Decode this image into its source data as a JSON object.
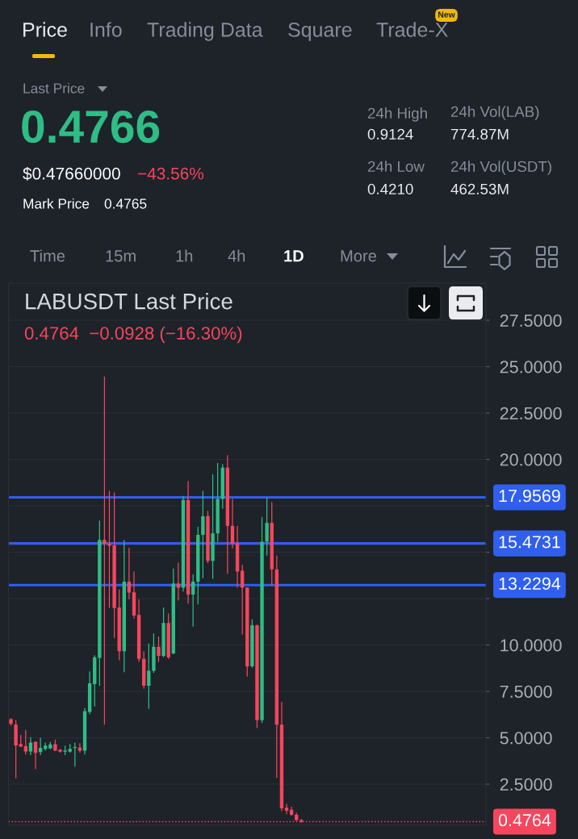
{
  "chart_data": {
    "type": "candlestick",
    "title": "LABUSDT Last Price",
    "subtitle": "0.4764  −0.0928 (−16.30%)",
    "annotations": [
      "Price",
      "Info",
      "Trading Data",
      "Square",
      "Trade-X",
      "New",
      "Last Price",
      "0.4766",
      "$0.47660000",
      "−43.56%",
      "Mark Price",
      "0.4765",
      "24h High",
      "0.9124",
      "24h Vol(LAB)",
      "774.87M",
      "24h Low",
      "0.4210",
      "24h Vol(USDT)",
      "462.53M",
      "Time",
      "15m",
      "1h",
      "4h",
      "1D",
      "More"
    ],
    "categories": [
      null,
      null,
      null,
      null,
      null,
      null,
      null,
      null,
      null,
      null,
      null,
      null,
      null,
      null,
      null,
      null,
      null,
      null,
      null,
      null,
      null,
      null,
      null,
      null,
      null,
      null,
      null,
      null,
      null,
      null,
      null,
      null,
      null,
      null,
      null,
      null,
      null,
      null,
      null,
      null,
      null,
      null,
      null,
      null,
      null,
      null,
      null,
      null,
      null,
      null,
      null,
      null,
      null,
      null,
      null,
      null,
      null,
      null,
      null,
      null,
      null,
      null,
      null,
      null,
      null,
      null,
      null,
      null,
      null,
      null,
      null,
      null,
      null,
      null,
      null,
      null,
      null,
      null,
      null,
      null,
      null,
      null,
      null,
      null,
      null,
      null,
      null,
      null,
      null,
      null,
      null,
      null,
      null,
      null,
      null,
      null,
      null
    ],
    "ohlc": [
      [
        6.0,
        6.05,
        5.65,
        5.75
      ],
      [
        5.71,
        5.95,
        2.81,
        4.59
      ],
      [
        4.66,
        5.15,
        4.5,
        4.52
      ],
      [
        4.55,
        5.42,
        4.1,
        4.26
      ],
      [
        4.26,
        5.03,
        4.07,
        4.74
      ],
      [
        4.78,
        4.8,
        3.3,
        4.18
      ],
      [
        4.23,
        5.0,
        4.07,
        4.46
      ],
      [
        4.4,
        4.74,
        4.3,
        4.58
      ],
      [
        4.42,
        4.78,
        4.38,
        4.64
      ],
      [
        4.65,
        4.9,
        4.28,
        4.3
      ],
      [
        4.35,
        4.4,
        4.2,
        4.25
      ],
      [
        4.25,
        4.58,
        4.07,
        4.32
      ],
      [
        4.25,
        4.66,
        4.2,
        4.4
      ],
      [
        4.45,
        4.74,
        3.45,
        4.5
      ],
      [
        4.47,
        4.7,
        4.2,
        4.3
      ],
      [
        4.3,
        6.6,
        4.1,
        6.43
      ],
      [
        6.39,
        8.58,
        6.27,
        7.93
      ],
      [
        7.89,
        9.45,
        6.68,
        9.34
      ],
      [
        9.3,
        16.7,
        7.8,
        15.66
      ],
      [
        15.66,
        24.47,
        5.71,
        15.45
      ],
      [
        15.45,
        18.3,
        12.0,
        15.35
      ],
      [
        15.37,
        18.22,
        10.38,
        11.99
      ],
      [
        12.02,
        12.99,
        9.17,
        9.66
      ],
      [
        9.66,
        15.66,
        8.53,
        13.41
      ],
      [
        13.41,
        15.24,
        12.47,
        12.83
      ],
      [
        12.84,
        13.97,
        11.43,
        11.59
      ],
      [
        11.62,
        12.47,
        9.09,
        9.25
      ],
      [
        9.25,
        9.66,
        7.64,
        7.8
      ],
      [
        7.8,
        10.09,
        6.55,
        8.61
      ],
      [
        8.61,
        10.62,
        8.5,
        9.9
      ],
      [
        9.9,
        10.46,
        9.09,
        9.41
      ],
      [
        9.41,
        12.02,
        9.34,
        11.19
      ],
      [
        11.19,
        11.7,
        9.25,
        9.34
      ],
      [
        9.54,
        14.12,
        9.5,
        13.31
      ],
      [
        13.31,
        14.44,
        12.39,
        13.09
      ],
      [
        13.09,
        18.03,
        12.88,
        17.82
      ],
      [
        17.82,
        18.84,
        12.23,
        12.72
      ],
      [
        12.72,
        13.8,
        10.99,
        13.41
      ],
      [
        13.41,
        16.37,
        12.18,
        15.93
      ],
      [
        15.93,
        18.3,
        13.6,
        16.93
      ],
      [
        16.95,
        17.23,
        14.41,
        14.53
      ],
      [
        14.53,
        19.2,
        13.57,
        16.02
      ],
      [
        16.02,
        19.8,
        15.57,
        17.87
      ],
      [
        17.87,
        19.75,
        17.34,
        19.56
      ],
      [
        19.56,
        20.23,
        13.84,
        16.42
      ],
      [
        16.42,
        17.87,
        15.21,
        15.45
      ],
      [
        15.49,
        16.42,
        13.09,
        13.96
      ],
      [
        14.0,
        14.33,
        10.57,
        13.09
      ],
      [
        13.09,
        13.1,
        8.29,
        8.85
      ],
      [
        8.85,
        11.38,
        8.77,
        11.06
      ],
      [
        11.06,
        11.1,
        5.52,
        5.95
      ],
      [
        5.95,
        16.9,
        5.79,
        15.57
      ],
      [
        15.57,
        17.95,
        14.81,
        16.58
      ],
      [
        16.58,
        17.71,
        13.2,
        14.08
      ],
      [
        14.08,
        14.81,
        2.84,
        5.71
      ],
      [
        5.71,
        6.92,
        1.04,
        1.2
      ],
      [
        1.23,
        1.44,
        0.88,
        1.07
      ],
      [
        1.12,
        1.28,
        0.8,
        0.85
      ],
      [
        0.85,
        0.96,
        0.53,
        0.56
      ],
      [
        0.56,
        0.62,
        0.42,
        0.48
      ],
      null,
      null,
      null,
      null,
      null,
      null,
      null,
      null,
      null,
      null,
      null,
      null,
      null,
      null,
      null,
      null,
      null,
      null,
      null,
      null,
      null,
      null,
      null,
      null,
      null,
      null,
      null,
      null,
      null,
      null,
      null,
      null,
      null,
      null,
      null,
      null,
      null
    ],
    "colors": [
      "#f6465d",
      "#f6465d",
      "#f6465d",
      "#f6465d",
      "#2ebd85",
      "#f6465d",
      "#2ebd85",
      "#2ebd85",
      "#2ebd85",
      "#f6465d",
      "#f6465d",
      "#2ebd85",
      "#2ebd85",
      "#2ebd85",
      "#f6465d",
      "#2ebd85",
      "#2ebd85",
      "#2ebd85",
      "#2ebd85",
      "#f6465d",
      "#f6465d",
      "#f6465d",
      "#f6465d",
      "#2ebd85",
      "#f6465d",
      "#f6465d",
      "#f6465d",
      "#f6465d",
      "#2ebd85",
      "#2ebd85",
      "#f6465d",
      "#2ebd85",
      "#f6465d",
      "#2ebd85",
      "#f6465d",
      "#2ebd85",
      "#f6465d",
      "#2ebd85",
      "#2ebd85",
      "#2ebd85",
      "#f6465d",
      "#2ebd85",
      "#2ebd85",
      "#2ebd85",
      "#f6465d",
      "#f6465d",
      "#f6465d",
      "#f6465d",
      "#f6465d",
      "#2ebd85",
      "#f6465d",
      "#2ebd85",
      "#2ebd85",
      "#f6465d",
      "#f6465d",
      "#f6465d",
      "#f6465d",
      "#f6465d",
      "#f6465d",
      "#f6465d",
      null,
      null,
      null,
      null,
      null,
      null,
      null,
      null,
      null,
      null,
      null,
      null,
      null,
      null,
      null,
      null,
      null,
      null,
      null,
      null,
      null,
      null,
      null,
      null,
      null,
      null,
      null,
      null,
      null,
      null,
      null,
      null,
      null,
      null,
      null,
      null,
      null
    ],
    "ylim": [
      0.3,
      29.5
    ],
    "yticks": [
      {
        "value": 2.5,
        "label": "2.5000"
      },
      {
        "value": 5,
        "label": "5.0000"
      },
      {
        "value": 7.5,
        "label": "7.5000"
      },
      {
        "value": 10,
        "label": "10.0000"
      },
      {
        "value": 12.5,
        "label": null
      },
      {
        "value": 15,
        "label": null
      },
      {
        "value": 17.5,
        "label": null
      },
      {
        "value": 20,
        "label": "20.0000"
      },
      {
        "value": 22.5,
        "label": "22.5000"
      },
      {
        "value": 25,
        "label": "25.0000"
      },
      {
        "value": 27.5,
        "label": "27.5000"
      }
    ],
    "ref_lines": [
      {
        "axis": "y",
        "value": 17.9569,
        "label": "17.9569",
        "color": "#2f5fec",
        "line_style": "solid"
      },
      {
        "axis": "y",
        "value": 15.4731,
        "label": "15.4731",
        "color": "#2f5fec",
        "line_style": "solid"
      },
      {
        "axis": "y",
        "value": 13.2294,
        "label": "13.2294",
        "color": "#2f5fec",
        "line_style": "solid"
      },
      {
        "axis": "y",
        "value": 0.4764,
        "label": "0.4764",
        "color": "#f6465d",
        "line_style": "dotted"
      }
    ],
    "grid": "y",
    "tick_labels": "y"
  }
}
